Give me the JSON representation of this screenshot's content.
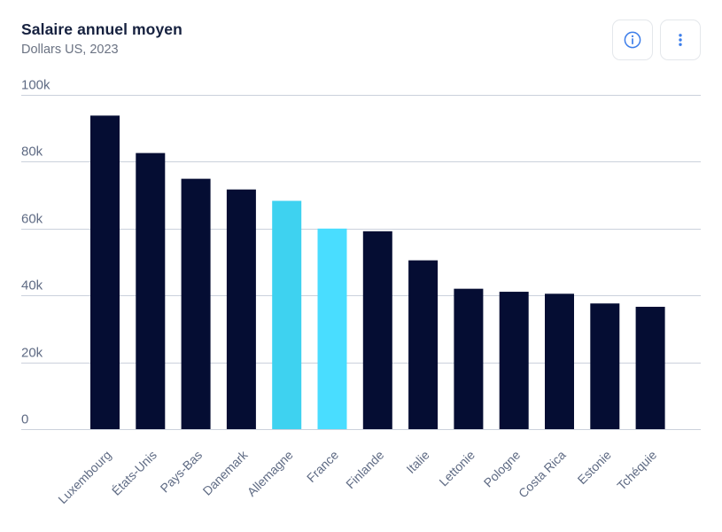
{
  "header": {
    "title": "Salaire annuel moyen",
    "subtitle": "Dollars US, 2023"
  },
  "toolbar": {
    "info_label": "Informations",
    "menu_label": "Menu",
    "icons": [
      "info-icon",
      "kebab-menu-icon"
    ],
    "icon_color": "#3D7EEA",
    "border_color": "#E4E7EB"
  },
  "chart_data": {
    "type": "bar",
    "title": "Salaire annuel moyen",
    "subtitle": "Dollars US, 2023",
    "categories": [
      "Luxembourg",
      "États-Unis",
      "Pays-Bas",
      "Danemark",
      "Allemagne",
      "France",
      "Finlande",
      "Italie",
      "Lettonie",
      "Pologne",
      "Costa Rica",
      "Estonie",
      "Tchéquie"
    ],
    "values": [
      93800,
      82600,
      74900,
      71700,
      68300,
      60000,
      59200,
      50500,
      42000,
      41100,
      40500,
      37600,
      36600
    ],
    "highlighted_categories": [
      "Allemagne",
      "France"
    ],
    "bar_colors": [
      "#050D33",
      "#050D33",
      "#050D33",
      "#050D33",
      "#3ED2F0",
      "#49DDFF",
      "#050D33",
      "#050D33",
      "#050D33",
      "#050D33",
      "#050D33",
      "#050D33",
      "#050D33"
    ],
    "xlabel": "",
    "ylabel": "",
    "ylim": [
      0,
      100000
    ],
    "yticks": [
      0,
      20000,
      40000,
      60000,
      80000,
      100000
    ],
    "ytick_labels": [
      "0",
      "20k",
      "40k",
      "60k",
      "80k",
      "100k"
    ],
    "grid": true,
    "legend": false,
    "x_label_rotation": -45
  },
  "colors": {
    "bar_default": "#050D33",
    "bar_highlight_allemagne": "#3ED2F0",
    "bar_highlight_france": "#49DDFF",
    "gridline": "#CBD1DC",
    "axis_text": "#5F6B84",
    "title_text": "#16213F",
    "subtitle_text": "#6B7383",
    "background": "#FFFFFF"
  }
}
